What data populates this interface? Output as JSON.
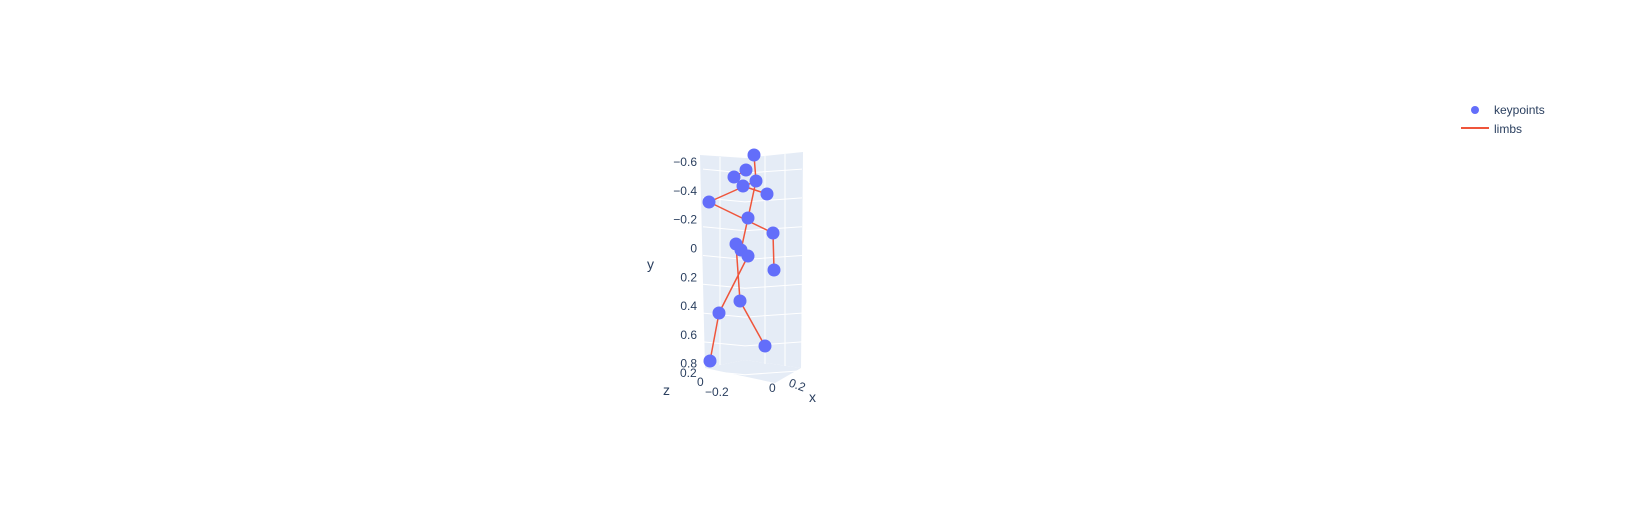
{
  "colors": {
    "keypoints": "#636efa",
    "limbs": "#ef553b",
    "pane": "#e5ecf6",
    "grid": "#ffffff",
    "text": "#2a3f5f"
  },
  "chart_data": {
    "type": "scatter",
    "subtype": "scatter3d",
    "axes": {
      "x": {
        "label": "x",
        "ticks": [
          "0",
          "0.2"
        ]
      },
      "y": {
        "label": "y",
        "ticks": [
          "−0.6",
          "−0.4",
          "−0.2",
          "0",
          "0.2",
          "0.4",
          "0.6",
          "0.8"
        ],
        "reversed": true
      },
      "z": {
        "label": "z",
        "ticks": [
          "0.2",
          "0",
          "−0.2"
        ]
      }
    },
    "legend": {
      "placement": "top-right",
      "entries": [
        {
          "name": "keypoints",
          "symbol": "marker"
        },
        {
          "name": "limbs",
          "symbol": "line"
        }
      ]
    },
    "series": [
      {
        "name": "keypoints",
        "mode": "markers",
        "points_xy_projected": [
          {
            "id": "head",
            "y": -0.64
          },
          {
            "id": "neck",
            "y": -0.54
          },
          {
            "id": "l_shoulder",
            "y": -0.49
          },
          {
            "id": "r_shoulder",
            "y": -0.47
          },
          {
            "id": "thorax",
            "y": -0.43
          },
          {
            "id": "l_elbow",
            "y": -0.38
          },
          {
            "id": "r_elbow",
            "y": -0.36
          },
          {
            "id": "spine",
            "y": -0.22
          },
          {
            "id": "l_wrist",
            "y": 0.11
          },
          {
            "id": "pelvis",
            "y": 0.01
          },
          {
            "id": "hip_c",
            "y": 0.0
          },
          {
            "id": "r_hip",
            "y": 0.05
          },
          {
            "id": "r_wrist",
            "y": 0.15
          },
          {
            "id": "l_knee",
            "y": 0.38
          },
          {
            "id": "r_knee",
            "y": 0.45
          },
          {
            "id": "l_ankle",
            "y": 0.68
          },
          {
            "id": "r_ankle",
            "y": 0.79
          }
        ]
      },
      {
        "name": "limbs",
        "mode": "lines",
        "segments": [
          [
            "head",
            "r_shoulder"
          ],
          [
            "neck",
            "l_shoulder"
          ],
          [
            "l_shoulder",
            "thorax"
          ],
          [
            "thorax",
            "r_elbow"
          ],
          [
            "r_shoulder",
            "l_elbow"
          ],
          [
            "r_shoulder",
            "spine"
          ],
          [
            "spine",
            "pelvis"
          ],
          [
            "l_elbow",
            "l_wrist"
          ],
          [
            "l_wrist",
            "r_wrist"
          ],
          [
            "pelvis",
            "hip_c"
          ],
          [
            "hip_c",
            "r_hip"
          ],
          [
            "hip_c",
            "l_knee"
          ],
          [
            "r_hip",
            "r_knee"
          ],
          [
            "l_knee",
            "l_ankle"
          ],
          [
            "r_knee",
            "r_ankle"
          ]
        ]
      }
    ]
  }
}
